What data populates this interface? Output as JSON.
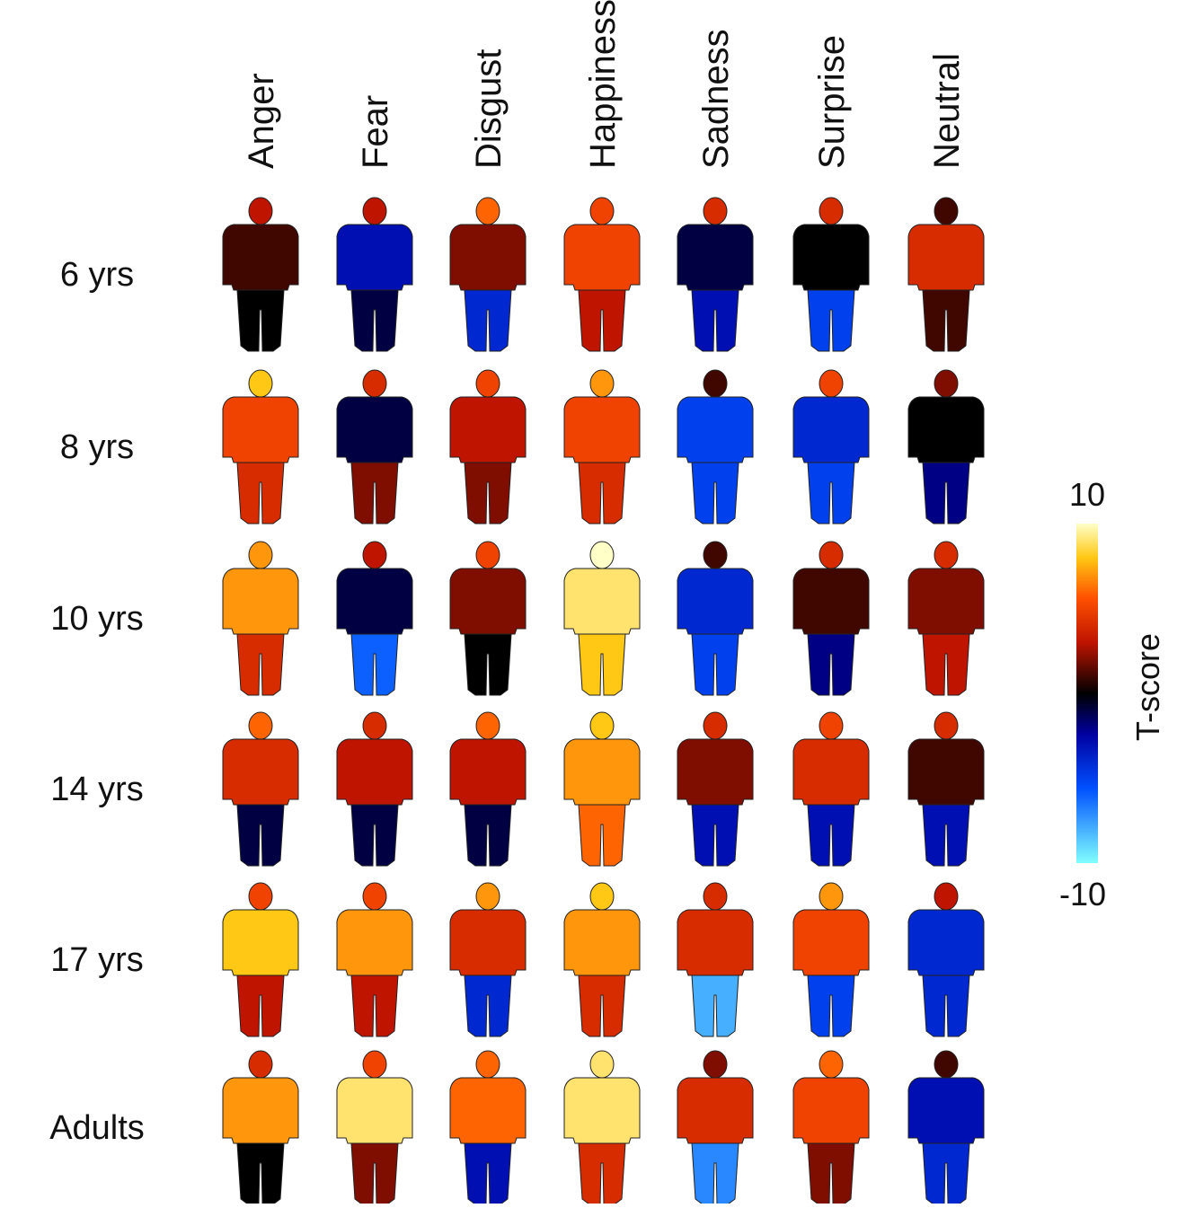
{
  "columns": [
    "Anger",
    "Fear",
    "Disgust",
    "Happiness",
    "Sadness",
    "Surprise",
    "Neutral"
  ],
  "rows": [
    "6 yrs",
    "8 yrs",
    "10 yrs",
    "14 yrs",
    "17 yrs",
    "Adults"
  ],
  "cells": [
    [
      [
        3,
        1,
        0
      ],
      [
        3,
        -3,
        -1
      ],
      [
        6,
        2,
        -4
      ],
      [
        5,
        5,
        3
      ],
      [
        4,
        -1,
        -3
      ],
      [
        4,
        0,
        -5
      ],
      [
        1,
        4,
        1
      ]
    ],
    [
      [
        8,
        5,
        4
      ],
      [
        4,
        -1,
        2
      ],
      [
        5,
        3,
        2
      ],
      [
        7,
        5,
        4
      ],
      [
        1,
        -5,
        -5
      ],
      [
        5,
        -4,
        -5
      ],
      [
        2,
        0,
        -2
      ]
    ],
    [
      [
        7,
        7,
        4
      ],
      [
        3,
        -1,
        -6
      ],
      [
        5,
        2,
        0
      ],
      [
        10,
        9,
        8
      ],
      [
        1,
        -4,
        -5
      ],
      [
        4,
        1,
        -2
      ],
      [
        4,
        2,
        3
      ]
    ],
    [
      [
        6,
        4,
        -1
      ],
      [
        4,
        3,
        -1
      ],
      [
        6,
        3,
        -1
      ],
      [
        8,
        7,
        6
      ],
      [
        4,
        2,
        -3
      ],
      [
        5,
        4,
        -3
      ],
      [
        4,
        1,
        -3
      ]
    ],
    [
      [
        5,
        8,
        3
      ],
      [
        5,
        7,
        3
      ],
      [
        7,
        4,
        -4
      ],
      [
        8,
        7,
        4
      ],
      [
        4,
        4,
        -8
      ],
      [
        7,
        5,
        -5
      ],
      [
        3,
        -4,
        -4
      ]
    ],
    [
      [
        4,
        7,
        0
      ],
      [
        5,
        9,
        2
      ],
      [
        6,
        6,
        -3
      ],
      [
        9,
        9,
        4
      ],
      [
        2,
        4,
        -7
      ],
      [
        6,
        5,
        2
      ],
      [
        1,
        -3,
        -4
      ]
    ]
  ],
  "colorbar": {
    "label": "T-score",
    "max": 10,
    "min": -10
  }
}
